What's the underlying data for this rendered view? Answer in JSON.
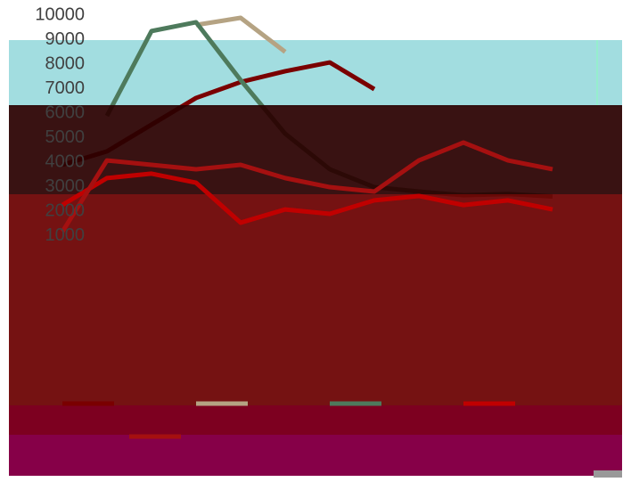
{
  "chart_data": {
    "type": "line",
    "categories": [
      null,
      null,
      null,
      null,
      null,
      null,
      null,
      null,
      null,
      null,
      null,
      null
    ],
    "series": [
      {
        "color": "#7a0000",
        "values": [
          3890,
          4440,
          5530,
          6620,
          7270,
          7710,
          8070,
          6980,
          null,
          null,
          null,
          null
        ]
      },
      {
        "color": "#b5a383",
        "values": [
          null,
          null,
          null,
          9600,
          9890,
          8500,
          null,
          null,
          null,
          null,
          null,
          null
        ]
      },
      {
        "color": "#4e7a5c",
        "values": [
          null,
          5890,
          9350,
          9710,
          7350,
          5160,
          3710,
          2980,
          2800,
          2650,
          2700,
          2600
        ]
      },
      {
        "color": "#c00000",
        "values": [
          2250,
          3350,
          3530,
          3160,
          1530,
          2070,
          1890,
          2440,
          2620,
          2250,
          2440,
          2070
        ]
      },
      {
        "color": "#a51010",
        "values": [
          1160,
          4070,
          3890,
          3710,
          3890,
          3350,
          2980,
          2800,
          4070,
          4800,
          4070,
          3710
        ]
      }
    ],
    "ylim": [
      0,
      10000
    ],
    "yticks": [
      10000,
      9000,
      8000,
      7000,
      6000,
      5000,
      4000,
      3000,
      2000,
      1000
    ]
  }
}
